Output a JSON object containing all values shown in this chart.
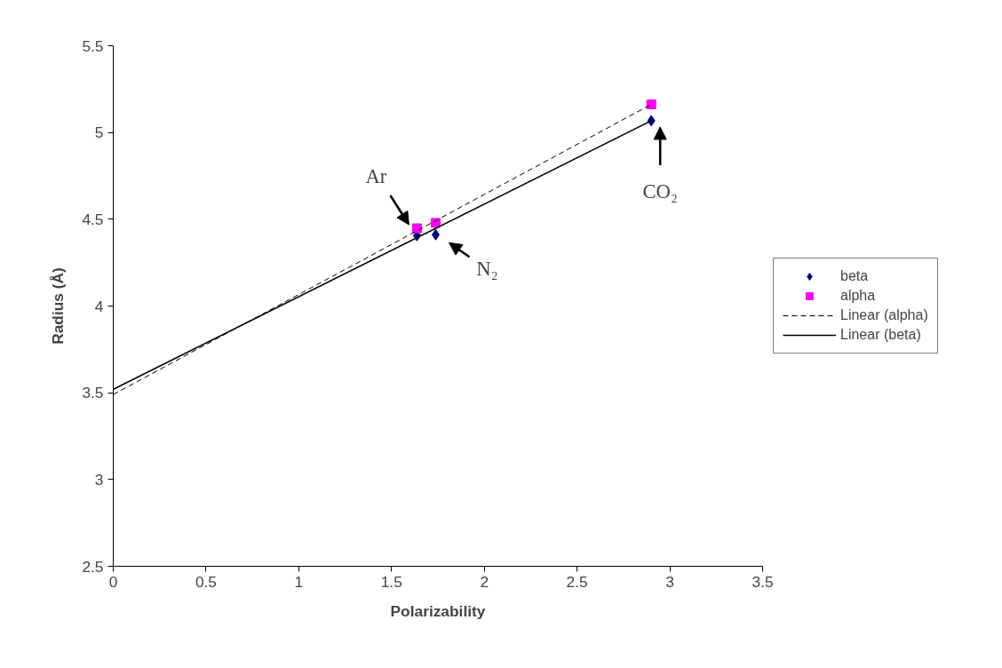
{
  "chart_data": {
    "type": "scatter",
    "xlabel": "Polarizability",
    "ylabel": "Radius (Å)",
    "xlim": [
      0,
      3.5
    ],
    "xticks": [
      0,
      0.5,
      1,
      1.5,
      2,
      2.5,
      3,
      3.5
    ],
    "ylim": [
      2.5,
      5.5
    ],
    "yticks": [
      2.5,
      3,
      3.5,
      4,
      4.5,
      5,
      5.5
    ],
    "grid": false,
    "legend": "right",
    "series": [
      {
        "name": "beta",
        "marker": "diamond",
        "color": "#000080",
        "x": [
          1.637,
          1.738,
          2.9
        ],
        "values": [
          4.406,
          4.411,
          5.068
        ]
      },
      {
        "name": "alpha",
        "marker": "square",
        "color": "#ff00ff",
        "x": [
          1.637,
          1.738,
          2.9
        ],
        "values": [
          4.448,
          4.479,
          5.162
        ]
      },
      {
        "name": "Linear (alpha)",
        "type": "line",
        "line_style": "dashed",
        "color": "#000000",
        "x": [
          0,
          2.9
        ],
        "values": [
          3.49,
          5.162
        ]
      },
      {
        "name": "Linear (beta)",
        "type": "line",
        "line_style": "solid",
        "color": "#000000",
        "x": [
          0,
          2.9
        ],
        "values": [
          3.52,
          5.068
        ]
      }
    ],
    "annotations": [
      {
        "text": "Ar",
        "x": 1.637,
        "y": 4.448
      },
      {
        "text": "N₂",
        "x": 1.738,
        "y": 4.411
      },
      {
        "text": "CO₂",
        "x": 2.9,
        "y": 5.068
      }
    ]
  }
}
